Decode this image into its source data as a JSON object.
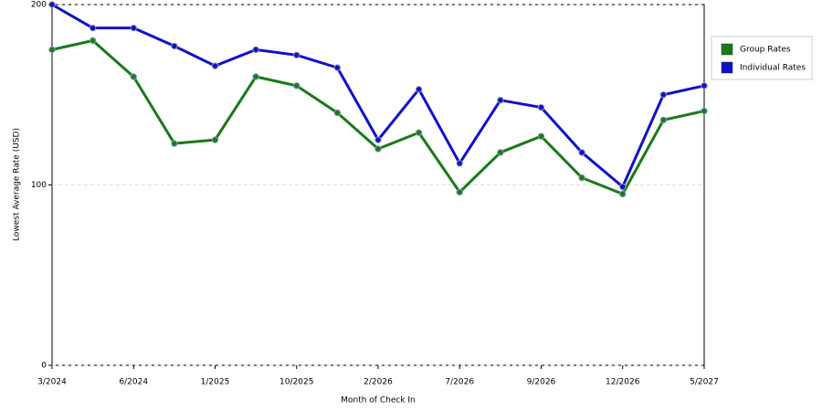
{
  "chart_data": {
    "type": "line",
    "x_label": "Month of Check In",
    "y_label": "Lowest Average Rate (USD)",
    "categories": [
      "3/2024",
      null,
      "6/2024",
      null,
      "1/2025",
      null,
      "10/2025",
      null,
      "2/2026",
      null,
      "7/2026",
      null,
      "9/2026",
      null,
      "12/2026",
      null,
      "5/2027"
    ],
    "series": [
      {
        "name": "Group Rates",
        "color": "#1a7a1a",
        "values": [
          175,
          180,
          160,
          123,
          125,
          160,
          155,
          140,
          120,
          129,
          96,
          118,
          127,
          104,
          95,
          136,
          141
        ]
      },
      {
        "name": "Individual Rates",
        "color": "#1010cc",
        "values": [
          200,
          187,
          187,
          177,
          166,
          175,
          172,
          165,
          125,
          153,
          112,
          147,
          143,
          118,
          99,
          150,
          155
        ]
      }
    ],
    "ylim": [
      0,
      200
    ],
    "yticks": [
      0,
      100,
      200
    ],
    "grid": true,
    "legend": "right"
  }
}
